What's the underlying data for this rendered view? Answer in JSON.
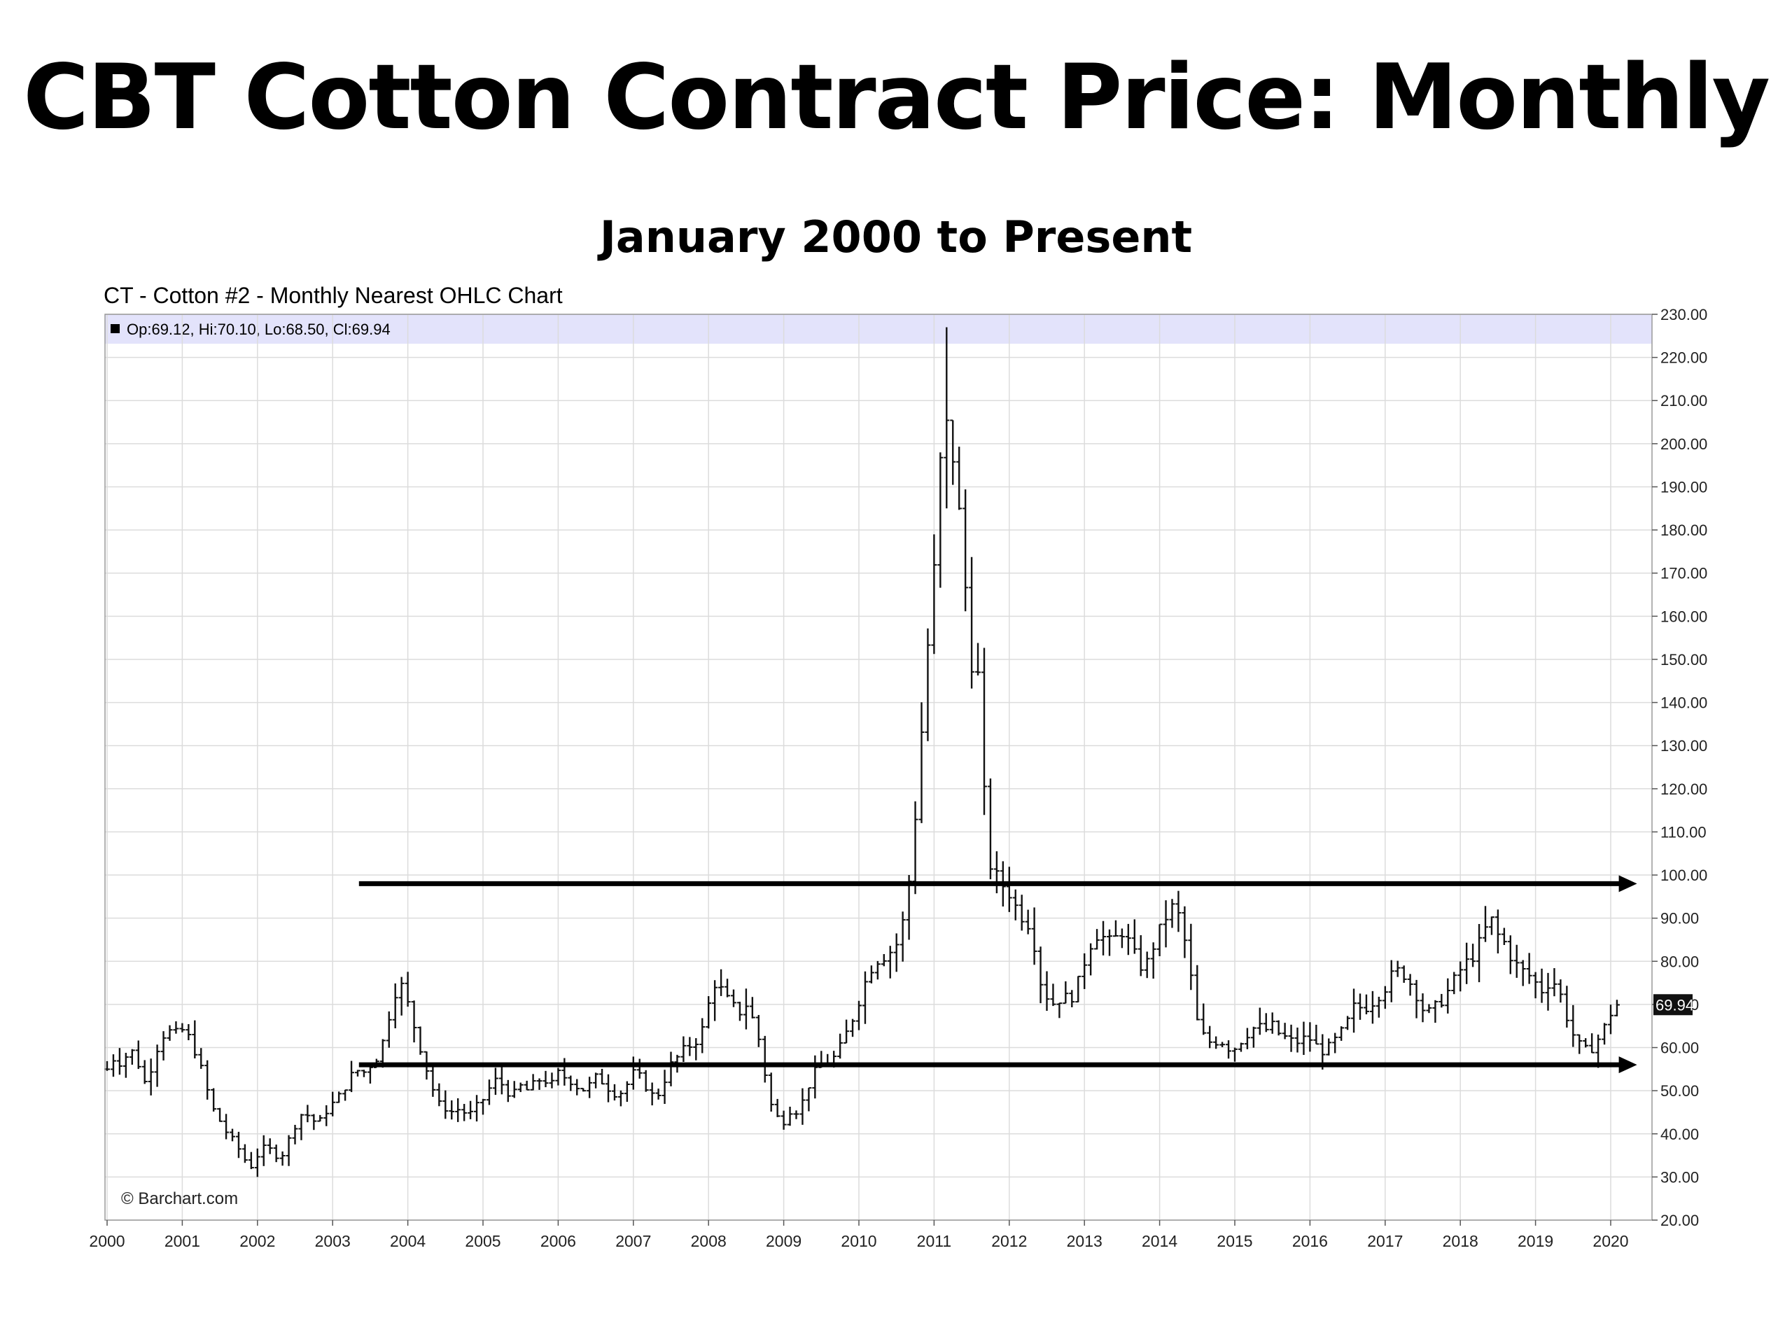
{
  "slide": {
    "title": "CBT Cotton Contract Price: Monthly",
    "subtitle": "January 2000 to Present"
  },
  "chart_data": {
    "type": "ohlc",
    "title": "CT - Cotton #2 - Monthly Nearest OHLC Chart",
    "legend_text": "Op:69.12, Hi:70.10, Lo:68.50, Cl:69.94",
    "last_price_label": "69.94",
    "watermark": "© Barchart.com",
    "x_ticks": [
      "2000",
      "2001",
      "2002",
      "2003",
      "2004",
      "2005",
      "2006",
      "2007",
      "2008",
      "2009",
      "2010",
      "2011",
      "2012",
      "2013",
      "2014",
      "2015",
      "2016",
      "2017",
      "2018",
      "2019",
      "2020"
    ],
    "x_range": [
      2000.0,
      2020.55
    ],
    "y_ticks": [
      "20.00",
      "30.00",
      "40.00",
      "50.00",
      "60.00",
      "70.00",
      "80.00",
      "90.00",
      "100.00",
      "110.00",
      "120.00",
      "130.00",
      "140.00",
      "150.00",
      "160.00",
      "170.00",
      "180.00",
      "190.00",
      "200.00",
      "210.00",
      "220.00",
      "230.00"
    ],
    "y_range": [
      20,
      230
    ],
    "y_axis": "right",
    "grid": true,
    "close_path": [
      [
        2000.0,
        55
      ],
      [
        2000.1,
        58
      ],
      [
        2000.2,
        56
      ],
      [
        2000.3,
        60
      ],
      [
        2000.4,
        57
      ],
      [
        2000.5,
        52
      ],
      [
        2000.6,
        56
      ],
      [
        2000.7,
        62
      ],
      [
        2000.8,
        64
      ],
      [
        2000.9,
        63
      ],
      [
        2001.0,
        64
      ],
      [
        2001.1,
        62
      ],
      [
        2001.2,
        58
      ],
      [
        2001.3,
        52
      ],
      [
        2001.4,
        46
      ],
      [
        2001.5,
        43
      ],
      [
        2001.6,
        40
      ],
      [
        2001.7,
        38
      ],
      [
        2001.8,
        35
      ],
      [
        2001.9,
        32
      ],
      [
        2002.0,
        35
      ],
      [
        2002.1,
        37
      ],
      [
        2002.2,
        36
      ],
      [
        2002.3,
        34
      ],
      [
        2002.4,
        38
      ],
      [
        2002.5,
        42
      ],
      [
        2002.6,
        45
      ],
      [
        2002.7,
        44
      ],
      [
        2002.8,
        42
      ],
      [
        2002.9,
        45
      ],
      [
        2003.0,
        47
      ],
      [
        2003.1,
        49
      ],
      [
        2003.2,
        52
      ],
      [
        2003.3,
        55
      ],
      [
        2003.4,
        54
      ],
      [
        2003.5,
        56
      ],
      [
        2003.6,
        58
      ],
      [
        2003.7,
        63
      ],
      [
        2003.8,
        72
      ],
      [
        2003.9,
        75
      ],
      [
        2004.0,
        70
      ],
      [
        2004.1,
        64
      ],
      [
        2004.2,
        58
      ],
      [
        2004.3,
        52
      ],
      [
        2004.4,
        47
      ],
      [
        2004.5,
        46
      ],
      [
        2004.6,
        45
      ],
      [
        2004.7,
        46
      ],
      [
        2004.8,
        44
      ],
      [
        2004.9,
        46
      ],
      [
        2005.0,
        48
      ],
      [
        2005.1,
        51
      ],
      [
        2005.2,
        53
      ],
      [
        2005.3,
        50
      ],
      [
        2005.4,
        49
      ],
      [
        2005.5,
        51
      ],
      [
        2005.6,
        50
      ],
      [
        2005.7,
        52
      ],
      [
        2005.8,
        53
      ],
      [
        2005.9,
        51
      ],
      [
        2006.0,
        54
      ],
      [
        2006.1,
        53
      ],
      [
        2006.2,
        52
      ],
      [
        2006.3,
        50
      ],
      [
        2006.4,
        51
      ],
      [
        2006.5,
        53
      ],
      [
        2006.6,
        52
      ],
      [
        2006.7,
        50
      ],
      [
        2006.8,
        49
      ],
      [
        2006.9,
        51
      ],
      [
        2007.0,
        54
      ],
      [
        2007.1,
        53
      ],
      [
        2007.2,
        50
      ],
      [
        2007.3,
        48
      ],
      [
        2007.4,
        52
      ],
      [
        2007.5,
        56
      ],
      [
        2007.6,
        58
      ],
      [
        2007.7,
        60
      ],
      [
        2007.8,
        61
      ],
      [
        2007.9,
        63
      ],
      [
        2008.0,
        70
      ],
      [
        2008.1,
        76
      ],
      [
        2008.2,
        72
      ],
      [
        2008.3,
        70
      ],
      [
        2008.4,
        68
      ],
      [
        2008.5,
        70
      ],
      [
        2008.6,
        66
      ],
      [
        2008.7,
        60
      ],
      [
        2008.8,
        48
      ],
      [
        2008.9,
        44
      ],
      [
        2009.0,
        43
      ],
      [
        2009.1,
        46
      ],
      [
        2009.2,
        45
      ],
      [
        2009.3,
        50
      ],
      [
        2009.4,
        54
      ],
      [
        2009.5,
        56
      ],
      [
        2009.6,
        57
      ],
      [
        2009.7,
        58
      ],
      [
        2009.8,
        62
      ],
      [
        2009.9,
        66
      ],
      [
        2010.0,
        71
      ],
      [
        2010.1,
        76
      ],
      [
        2010.2,
        80
      ],
      [
        2010.3,
        81
      ],
      [
        2010.4,
        82
      ],
      [
        2010.5,
        84
      ],
      [
        2010.6,
        90
      ],
      [
        2010.7,
        103
      ],
      [
        2010.8,
        125
      ],
      [
        2010.9,
        150
      ],
      [
        2011.0,
        170
      ],
      [
        2011.1,
        200
      ],
      [
        2011.2,
        205
      ],
      [
        2011.3,
        190
      ],
      [
        2011.4,
        170
      ],
      [
        2011.5,
        150
      ],
      [
        2011.6,
        145
      ],
      [
        2011.7,
        105
      ],
      [
        2011.8,
        100
      ],
      [
        2011.9,
        98
      ],
      [
        2012.0,
        96
      ],
      [
        2012.1,
        92
      ],
      [
        2012.2,
        90
      ],
      [
        2012.3,
        88
      ],
      [
        2012.4,
        76
      ],
      [
        2012.5,
        72
      ],
      [
        2012.6,
        70
      ],
      [
        2012.7,
        72
      ],
      [
        2012.8,
        71
      ],
      [
        2012.9,
        74
      ],
      [
        2013.0,
        80
      ],
      [
        2013.1,
        85
      ],
      [
        2013.2,
        87
      ],
      [
        2013.3,
        84
      ],
      [
        2013.4,
        85
      ],
      [
        2013.5,
        87
      ],
      [
        2013.6,
        84
      ],
      [
        2013.7,
        80
      ],
      [
        2013.8,
        78
      ],
      [
        2013.9,
        83
      ],
      [
        2014.0,
        87
      ],
      [
        2014.1,
        91
      ],
      [
        2014.2,
        93
      ],
      [
        2014.3,
        88
      ],
      [
        2014.4,
        78
      ],
      [
        2014.5,
        66
      ],
      [
        2014.6,
        62
      ],
      [
        2014.7,
        61
      ],
      [
        2014.8,
        62
      ],
      [
        2014.9,
        60
      ],
      [
        2015.0,
        60
      ],
      [
        2015.1,
        62
      ],
      [
        2015.2,
        64
      ],
      [
        2015.3,
        65
      ],
      [
        2015.4,
        64
      ],
      [
        2015.5,
        65
      ],
      [
        2015.6,
        63
      ],
      [
        2015.7,
        62
      ],
      [
        2015.8,
        61
      ],
      [
        2015.9,
        62
      ],
      [
        2016.0,
        62
      ],
      [
        2016.1,
        60
      ],
      [
        2016.2,
        59
      ],
      [
        2016.3,
        61
      ],
      [
        2016.4,
        63
      ],
      [
        2016.5,
        66
      ],
      [
        2016.6,
        70
      ],
      [
        2016.7,
        69
      ],
      [
        2016.8,
        70
      ],
      [
        2016.9,
        72
      ],
      [
        2017.0,
        74
      ],
      [
        2017.1,
        77
      ],
      [
        2017.2,
        78
      ],
      [
        2017.3,
        76
      ],
      [
        2017.4,
        73
      ],
      [
        2017.5,
        69
      ],
      [
        2017.6,
        68
      ],
      [
        2017.7,
        70
      ],
      [
        2017.8,
        72
      ],
      [
        2017.9,
        75
      ],
      [
        2018.0,
        78
      ],
      [
        2018.1,
        80
      ],
      [
        2018.2,
        82
      ],
      [
        2018.3,
        86
      ],
      [
        2018.4,
        90
      ],
      [
        2018.5,
        86
      ],
      [
        2018.6,
        84
      ],
      [
        2018.7,
        80
      ],
      [
        2018.8,
        78
      ],
      [
        2018.9,
        77
      ],
      [
        2019.0,
        75
      ],
      [
        2019.1,
        73
      ],
      [
        2019.2,
        76
      ],
      [
        2019.3,
        74
      ],
      [
        2019.4,
        68
      ],
      [
        2019.5,
        63
      ],
      [
        2019.6,
        60
      ],
      [
        2019.7,
        59
      ],
      [
        2019.8,
        61
      ],
      [
        2019.9,
        64
      ],
      [
        2020.0,
        68
      ],
      [
        2020.05,
        69.94
      ]
    ],
    "peak": {
      "x": 2011.18,
      "high": 227,
      "low": 185
    },
    "annotations": [
      {
        "type": "arrow",
        "y": 98,
        "x_start": 2003.35,
        "x_end": 2020.35
      },
      {
        "type": "arrow",
        "y": 56,
        "x_start": 2003.35,
        "x_end": 2020.35
      }
    ],
    "colors": {
      "bars": "#111111",
      "grid": "#dcdcdc",
      "legend_band": "#e3e3fb",
      "arrows": "#000000",
      "last_price_bg": "#111111"
    }
  }
}
